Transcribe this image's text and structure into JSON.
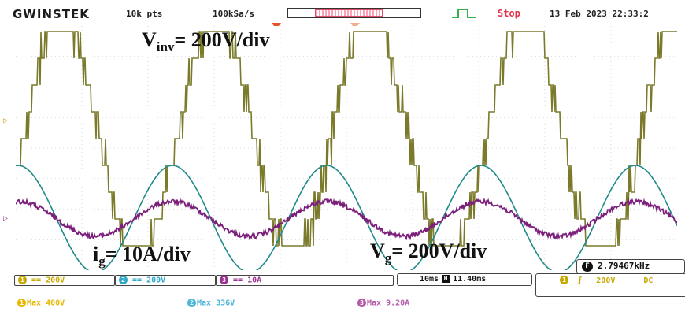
{
  "header": {
    "brand": "GWINSTEK",
    "record_length": "10k pts",
    "sample_rate": "100kSa/s",
    "run_status": "Stop",
    "datetime": "13 Feb 2023 22:33:2"
  },
  "overlays": {
    "vinv_main": "V",
    "vinv_sub": "inv",
    "vinv_value": "= 200V/div",
    "ig_main": "i",
    "ig_sub": "g",
    "ig_value": "= 10A/div",
    "vg_main": "V",
    "vg_sub": "g",
    "vg_value": "= 200V/div"
  },
  "channels": [
    {
      "id": "1",
      "coupling": "==",
      "scale": "200V",
      "color": "#c8a800",
      "max_label": "Max 400V"
    },
    {
      "id": "2",
      "coupling": "==",
      "scale": "200V",
      "color": "#2fa8c8",
      "max_label": "Max 336V"
    },
    {
      "id": "3",
      "coupling": "==",
      "scale": "10A",
      "color": "#9b2f8f",
      "max_label": "Max 9.20A"
    }
  ],
  "timebase": {
    "scale": "10ms",
    "position": "11.40ms",
    "position_icon": "H"
  },
  "trigger": {
    "channel": "1",
    "slope": "rising",
    "level": "200V",
    "coupling": "DC"
  },
  "frequency": {
    "icon": "F",
    "value": "2.79467kHz"
  },
  "trace_colors": {
    "vinv": "#7a7a2a",
    "vg": "#1f8a8a",
    "ig": "#7b1f7b",
    "grid": "#bdbdbd"
  }
}
